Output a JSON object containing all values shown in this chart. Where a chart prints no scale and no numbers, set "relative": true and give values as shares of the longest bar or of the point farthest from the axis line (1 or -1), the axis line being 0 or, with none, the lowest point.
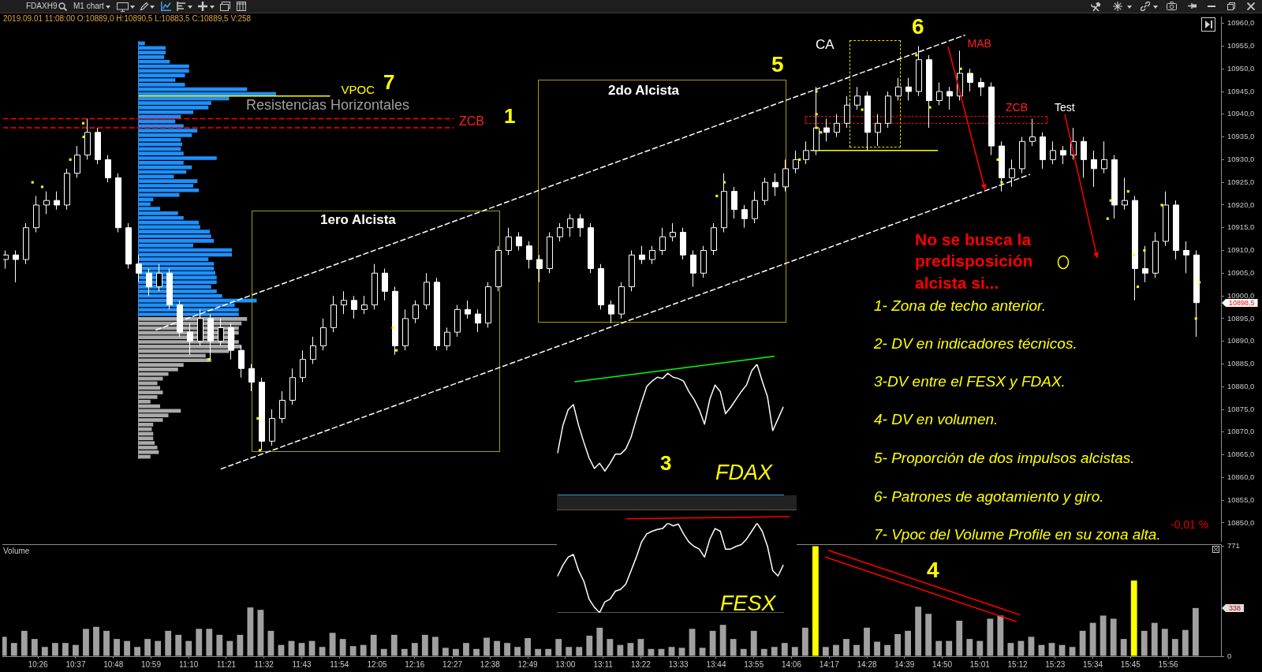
{
  "chart_data": [
    {
      "type": "candlestick",
      "title": "FDAXH9",
      "subtitle": "M1 chart",
      "color": "#ffffff",
      "x": [
        10.2667,
        10.3167,
        10.3667,
        10.4167,
        10.4667,
        10.5167,
        10.5667,
        10.6167,
        10.6667,
        10.7167,
        10.7667,
        10.8167,
        10.8667,
        10.9167,
        10.9667,
        11.0167,
        11.0667,
        11.1167,
        11.1667,
        11.2167,
        11.2667,
        11.3167,
        11.3667,
        11.4167,
        11.4667,
        11.5167,
        11.5667,
        11.6167,
        11.6667,
        11.7167,
        11.7667,
        11.8167,
        11.8667,
        11.9167,
        11.9667,
        12.0167,
        12.0667,
        12.1167,
        12.1667,
        12.2167,
        12.2667,
        12.3167,
        12.3667,
        12.4167,
        12.4667,
        12.5167,
        12.5667,
        12.6167,
        12.6667,
        12.7167,
        12.7667,
        12.8167,
        12.8667,
        12.9167,
        12.9667,
        13.0167,
        13.0667,
        13.1167,
        13.1667,
        13.2167,
        13.2667,
        13.3167,
        13.3667,
        13.4167,
        13.4667,
        13.5167,
        13.5667,
        13.6167,
        13.6667,
        13.7167,
        13.7667,
        13.8167,
        13.8667,
        13.9167,
        13.9667,
        14.0167,
        14.0667,
        14.1167,
        14.1667,
        14.2167,
        14.2667,
        14.3167,
        14.3667,
        14.4167,
        14.4667,
        14.5167,
        14.5667,
        14.6167,
        14.6667,
        14.7167,
        14.7667,
        14.8167,
        14.8667,
        14.9167,
        14.9667,
        15.0167,
        15.0667,
        15.1167,
        15.1667,
        15.2167,
        15.2667,
        15.3167,
        15.3667,
        15.4167,
        15.4667,
        15.5167,
        15.5667,
        15.6167,
        15.6667,
        15.7167,
        15.7667,
        15.8167,
        15.8667,
        15.9167,
        15.9667,
        16.0167,
        16.0667
      ],
      "ohlc": [
        [
          10908,
          10910,
          10906,
          10909
        ],
        [
          10909,
          10910,
          10903,
          10908
        ],
        [
          10908,
          10916,
          10907,
          10915
        ],
        [
          10915,
          10922,
          10914,
          10920
        ],
        [
          10920,
          10923,
          10918,
          10921
        ],
        [
          10921,
          10923,
          10919,
          10920
        ],
        [
          10920,
          10928,
          10919,
          10927
        ],
        [
          10927,
          10933,
          10926,
          10931
        ],
        [
          10931,
          10939,
          10930,
          10936
        ],
        [
          10936,
          10937,
          10929,
          10930
        ],
        [
          10930,
          10931,
          10925,
          10926
        ],
        [
          10926,
          10927,
          10914,
          10915
        ],
        [
          10915,
          10916,
          10906,
          10907
        ],
        [
          10907,
          10909,
          10903,
          10905
        ],
        [
          10905,
          10906,
          10900,
          10902
        ],
        [
          10902,
          10907,
          10901,
          10905
        ],
        [
          10905,
          10906,
          10897,
          10898
        ],
        [
          10898,
          10899,
          10891,
          10892
        ],
        [
          10892,
          10894,
          10887,
          10890
        ],
        [
          10890,
          10897,
          10889,
          10895
        ],
        [
          10895,
          10896,
          10886,
          10890
        ],
        [
          10890,
          10895,
          10889,
          10893
        ],
        [
          10893,
          10894,
          10886,
          10888
        ],
        [
          10888,
          10889,
          10882,
          10884
        ],
        [
          10884,
          10885,
          10879,
          10881
        ],
        [
          10881,
          10882,
          10866,
          10868
        ],
        [
          10868,
          10875,
          10867,
          10873
        ],
        [
          10873,
          10879,
          10872,
          10877
        ],
        [
          10877,
          10884,
          10876,
          10882
        ],
        [
          10882,
          10888,
          10881,
          10886
        ],
        [
          10886,
          10891,
          10885,
          10889
        ],
        [
          10889,
          10895,
          10888,
          10893
        ],
        [
          10893,
          10900,
          10892,
          10898
        ],
        [
          10898,
          10901,
          10896,
          10899
        ],
        [
          10899,
          10900,
          10895,
          10897
        ],
        [
          10897,
          10900,
          10896,
          10898
        ],
        [
          10898,
          10907,
          10897,
          10905
        ],
        [
          10905,
          10906,
          10899,
          10901
        ],
        [
          10901,
          10902,
          10887,
          10889
        ],
        [
          10889,
          10897,
          10888,
          10895
        ],
        [
          10895,
          10899,
          10894,
          10898
        ],
        [
          10898,
          10905,
          10897,
          10903
        ],
        [
          10903,
          10904,
          10888,
          10889
        ],
        [
          10889,
          10893,
          10888,
          10892
        ],
        [
          10892,
          10898,
          10891,
          10897
        ],
        [
          10897,
          10899,
          10895,
          10896
        ],
        [
          10896,
          10897,
          10892,
          10894
        ],
        [
          10894,
          10903,
          10893,
          10902
        ],
        [
          10902,
          10911,
          10901,
          10910
        ],
        [
          10910,
          10915,
          10909,
          10913
        ],
        [
          10913,
          10914,
          10910,
          10911
        ],
        [
          10911,
          10912,
          10906,
          10908
        ],
        [
          10908,
          10909,
          10903,
          10906
        ],
        [
          10906,
          10914,
          10905,
          10913
        ],
        [
          10913,
          10916,
          10912,
          10915
        ],
        [
          10915,
          10918,
          10913,
          10917
        ],
        [
          10917,
          10918,
          10913,
          10915
        ],
        [
          10915,
          10916,
          10905,
          10906
        ],
        [
          10906,
          10907,
          10897,
          10898
        ],
        [
          10898,
          10899,
          10894,
          10896
        ],
        [
          10896,
          10903,
          10895,
          10902
        ],
        [
          10902,
          10910,
          10901,
          10909
        ],
        [
          10909,
          10911,
          10907,
          10908
        ],
        [
          10908,
          10911,
          10907,
          10910
        ],
        [
          10910,
          10915,
          10909,
          10913
        ],
        [
          10913,
          10916,
          10912,
          10914
        ],
        [
          10914,
          10915,
          10908,
          10909
        ],
        [
          10909,
          10910,
          10902,
          10905
        ],
        [
          10905,
          10911,
          10904,
          10910
        ],
        [
          10910,
          10916,
          10909,
          10915
        ],
        [
          10915,
          10927,
          10914,
          10923
        ],
        [
          10923,
          10924,
          10917,
          10919
        ],
        [
          10919,
          10920,
          10915,
          10917
        ],
        [
          10917,
          10923,
          10916,
          10921
        ],
        [
          10921,
          10926,
          10920,
          10925
        ],
        [
          10925,
          10927,
          10922,
          10924
        ],
        [
          10924,
          10930,
          10923,
          10928
        ],
        [
          10928,
          10932,
          10927,
          10930
        ],
        [
          10930,
          10934,
          10929,
          10932
        ],
        [
          10932,
          10946,
          10931,
          10937
        ],
        [
          10937,
          10939,
          10934,
          10936
        ],
        [
          10936,
          10940,
          10935,
          10938
        ],
        [
          10938,
          10944,
          10937,
          10942
        ],
        [
          10942,
          10946,
          10941,
          10944
        ],
        [
          10944,
          10945,
          10932,
          10936
        ],
        [
          10936,
          10940,
          10933,
          10938
        ],
        [
          10938,
          10945,
          10937,
          10944
        ],
        [
          10944,
          10948,
          10943,
          10946
        ],
        [
          10946,
          10948,
          10943,
          10945
        ],
        [
          10945,
          10955,
          10944,
          10952
        ],
        [
          10952,
          10953,
          10937,
          10943
        ],
        [
          10943,
          10947,
          10942,
          10945
        ],
        [
          10945,
          10946,
          10941,
          10944
        ],
        [
          10944,
          10954,
          10943,
          10949
        ],
        [
          10949,
          10950,
          10945,
          10947
        ],
        [
          10947,
          10948,
          10944,
          10946
        ],
        [
          10946,
          10947,
          10931,
          10933
        ],
        [
          10933,
          10934,
          10923,
          10926
        ],
        [
          10926,
          10930,
          10924,
          10928
        ],
        [
          10928,
          10935,
          10927,
          10934
        ],
        [
          10934,
          10939,
          10933,
          10935
        ],
        [
          10935,
          10936,
          10928,
          10930
        ],
        [
          10930,
          10934,
          10929,
          10932
        ],
        [
          10932,
          10933,
          10929,
          10931
        ],
        [
          10931,
          10937,
          10930,
          10934
        ],
        [
          10934,
          10935,
          10926,
          10930
        ],
        [
          10930,
          10932,
          10924,
          10928
        ],
        [
          10928,
          10934,
          10927,
          10930
        ],
        [
          10930,
          10931,
          10917,
          10920
        ],
        [
          10920,
          10926,
          10919,
          10921
        ],
        [
          10921,
          10922,
          10899,
          10906
        ],
        [
          10906,
          10911,
          10903,
          10905
        ],
        [
          10905,
          10914,
          10904,
          10912
        ],
        [
          10912,
          10923,
          10911,
          10920
        ],
        [
          10920,
          10921,
          10908,
          10910
        ],
        [
          10910,
          10912,
          10905,
          10909
        ],
        [
          10909,
          10910,
          10891,
          10898.5
        ]
      ],
      "series": [
        {
          "type": "line",
          "color": "#ffffff",
          "line_style": "dashed",
          "x": [
            11.005,
            14.942
          ],
          "values": [
            10892.5,
            10957.4
          ]
        },
        {
          "type": "line",
          "color": "#ffffff",
          "line_style": "dashed",
          "x": [
            11.322,
            15.258
          ],
          "values": [
            10861.9,
            10926.7
          ]
        },
        {
          "type": "line",
          "color": "#ff0000",
          "line_style": "dashed",
          "x": [
            10.26,
            12.452
          ],
          "values": [
            10939,
            10939
          ]
        },
        {
          "type": "line",
          "color": "#ff0000",
          "line_style": "dashed",
          "x": [
            10.26,
            12.452
          ],
          "values": [
            10937,
            10937
          ]
        },
        {
          "type": "line",
          "color": "#ffff00",
          "x": [
            10.922,
            11.85
          ],
          "values": [
            10944,
            10944
          ]
        },
        {
          "type": "line",
          "color": "#ffff00",
          "x": [
            14.193,
            14.81
          ],
          "values": [
            10932,
            10932
          ]
        },
        {
          "type": "line",
          "color": "#00ff00",
          "x": [
            13.044,
            14.014
          ],
          "values": [
            10881.1,
            10886.7
          ]
        },
        {
          "type": "line",
          "color": "#ff0000",
          "x": [
            13.296,
            14.087
          ],
          "values": [
            10850.9,
            10851.4
          ]
        },
        {
          "type": "scatter",
          "color": "#ffff00",
          "marker": "square",
          "x": [
            10.403,
            10.45,
            10.587,
            10.65,
            10.652,
            11.26,
            11.5,
            11.51,
            12.158,
            12.175,
            13.735,
            13.772,
            14.138,
            14.22,
            14.22,
            14.22,
            14.242,
            14.443,
            14.707,
            14.773,
            14.923,
            15.103,
            15.122,
            15.638,
            15.653,
            15.738,
            15.767,
            15.785,
            15.817,
            15.902,
            16.068,
            16.085
          ],
          "values": [
            10925,
            10924,
            10930,
            10938,
            10935,
            10886,
            10873,
            10866,
            10893,
            10888,
            10922,
            10925,
            10930,
            10945,
            10940,
            10937,
            10936,
            10941,
            10953,
            10941.5,
            10950,
            10930,
            10925,
            10917,
            10921,
            10923,
            10909,
            10902,
            10910,
            10920,
            10895,
            10903
          ]
        }
      ],
      "xlim": [
        10.26,
        16.19
      ],
      "ylim": [
        10846,
        10961.5
      ],
      "yticks": [
        {
          "value": 10850,
          "label": "10850,0"
        },
        {
          "value": 10855,
          "label": "10855,0"
        },
        {
          "value": 10860,
          "label": "10860,0"
        },
        {
          "value": 10865,
          "label": "10865,0"
        },
        {
          "value": 10870,
          "label": "10870,0"
        },
        {
          "value": 10875,
          "label": "10875,0"
        },
        {
          "value": 10880,
          "label": "10880,0"
        },
        {
          "value": 10885,
          "label": "10885,0"
        },
        {
          "value": 10890,
          "label": "10890,0"
        },
        {
          "value": 10895,
          "label": "10895,0"
        },
        {
          "value": 10900,
          "label": "10900,0"
        },
        {
          "value": 10905,
          "label": "10905,0"
        },
        {
          "value": 10910,
          "label": "10910,0"
        },
        {
          "value": 10915,
          "label": "10915,0"
        },
        {
          "value": 10920,
          "label": "10920,0"
        },
        {
          "value": 10925,
          "label": "10925,0"
        },
        {
          "value": 10930,
          "label": "10930,0"
        },
        {
          "value": 10935,
          "label": "10935,0"
        },
        {
          "value": 10940,
          "label": "10940,0"
        },
        {
          "value": 10945,
          "label": "10945,0"
        },
        {
          "value": 10950,
          "label": "10950,0"
        },
        {
          "value": 10955,
          "label": "10955,0"
        },
        {
          "value": 10960,
          "label": "10960,0"
        }
      ],
      "tick_labels": "y",
      "annotations": [
        "2019.09.01 11:08:00 O:10889,0 H:10890,5 L:10883,5 C:10889,5 V:258",
        "VPOC",
        "7",
        "Resistencias Horizontales",
        "ZCB",
        "1",
        "1ero Alcista",
        "2do Alcista",
        "5",
        "CA",
        "6",
        "MAB",
        "ZCB",
        "Test",
        "No se busca la predisposición alcista si...",
        "1- Zona de techo anterior.",
        "2- DV en indicadores técnicos.",
        "3-DV entre el FESX y FDAX.",
        "4- DV en volumen.",
        "5- Proporción de dos impulsos alcistas.",
        "6- Patrones de agotamiento y giro.",
        "7- Vpoc del Volume Profile en su zona alta.",
        "-0,01 %",
        "10898,5"
      ]
    },
    {
      "type": "bar",
      "orientation": "horizontal",
      "relative": true,
      "categories": [
        null,
        null,
        null,
        null,
        null,
        null,
        null,
        null,
        null,
        null,
        null,
        null,
        null,
        null,
        null,
        null,
        null,
        null,
        null,
        null,
        null,
        null,
        null,
        null,
        null,
        null,
        null,
        null,
        null,
        null,
        null,
        null,
        null,
        null,
        null,
        null,
        null,
        null,
        null,
        null,
        null,
        null,
        null,
        null,
        null,
        null,
        null,
        null,
        null,
        null,
        null,
        null,
        null,
        null,
        null,
        null,
        null,
        null,
        null,
        null,
        null,
        null,
        null,
        null,
        null,
        null,
        null,
        null,
        null,
        null,
        null,
        null,
        null,
        null,
        null,
        null,
        null,
        null,
        null,
        null,
        null,
        null,
        null,
        null,
        null,
        null,
        null,
        null,
        null,
        null,
        null
      ],
      "values": [
        0.05,
        0.2,
        0.2,
        0.19,
        0.23,
        0.37,
        0.37,
        0.34,
        0.27,
        0.34,
        0.79,
        1,
        0.66,
        0.53,
        0.51,
        0.4,
        0.31,
        0.27,
        0.33,
        0.43,
        0.39,
        0.31,
        0.32,
        0.31,
        0.33,
        0.57,
        0.33,
        0.39,
        0.35,
        0.26,
        0.43,
        0.4,
        0.44,
        0.3,
        0.11,
        0.09,
        0.16,
        0.29,
        0.33,
        0.44,
        0.45,
        0.52,
        0.53,
        0.55,
        0.4,
        0.68,
        0.68,
        0.51,
        0.55,
        0.55,
        0.56,
        0.57,
        0.57,
        0.53,
        0.57,
        0.61,
        0.86,
        0.7,
        0.73,
        0.73,
        0.79,
        0.75,
        0.73,
        0.73,
        0.7,
        0.73,
        0.75,
        0.66,
        0.49,
        0.53,
        0.33,
        0.29,
        0.22,
        0.18,
        0.14,
        0.16,
        0.18,
        0.14,
        0.09,
        0.16,
        0.31,
        0.22,
        0.18,
        0.11,
        0.1,
        0.11,
        0.11,
        0.12,
        0.14,
        0.15,
        0.09
      ],
      "colors": [
        "#1e90ff",
        "#1e90ff",
        "#1e90ff",
        "#1e90ff",
        "#1e90ff",
        "#1e90ff",
        "#1e90ff",
        "#1e90ff",
        "#1e90ff",
        "#1e90ff",
        "#1e90ff",
        "#1e90ff",
        "#1e90ff",
        "#1e90ff",
        "#1e90ff",
        "#1e90ff",
        "#1e90ff",
        "#1e90ff",
        "#1e90ff",
        "#1e90ff",
        "#1e90ff",
        "#1e90ff",
        "#1e90ff",
        "#1e90ff",
        "#1e90ff",
        "#1e90ff",
        "#1e90ff",
        "#1e90ff",
        "#1e90ff",
        "#1e90ff",
        "#1e90ff",
        "#1e90ff",
        "#1e90ff",
        "#1e90ff",
        "#1e90ff",
        "#1e90ff",
        "#1e90ff",
        "#1e90ff",
        "#1e90ff",
        "#1e90ff",
        "#1e90ff",
        "#1e90ff",
        "#1e90ff",
        "#1e90ff",
        "#1e90ff",
        "#1e90ff",
        "#1e90ff",
        "#1e90ff",
        "#1e90ff",
        "#1e90ff",
        "#1e90ff",
        "#1e90ff",
        "#1e90ff",
        "#1e90ff",
        "#1e90ff",
        "#1e90ff",
        "#1e90ff",
        "#1e90ff",
        "#1e90ff",
        "#1e90ff",
        "#aaaaaa",
        "#aaaaaa",
        "#aaaaaa",
        "#aaaaaa",
        "#aaaaaa",
        "#aaaaaa",
        "#aaaaaa",
        "#aaaaaa",
        "#aaaaaa",
        "#aaaaaa",
        "#aaaaaa",
        "#aaaaaa",
        "#aaaaaa",
        "#aaaaaa",
        "#aaaaaa",
        "#aaaaaa",
        "#aaaaaa",
        "#aaaaaa",
        "#aaaaaa",
        "#aaaaaa",
        "#aaaaaa",
        "#aaaaaa",
        "#aaaaaa",
        "#aaaaaa",
        "#aaaaaa",
        "#aaaaaa",
        "#aaaaaa",
        "#aaaaaa",
        "#aaaaaa",
        "#aaaaaa",
        "#aaaaaa"
      ]
    },
    {
      "type": "line",
      "title": "3",
      "relative": true,
      "categories": [
        null,
        null,
        null,
        null,
        null,
        null,
        null,
        null,
        null,
        null,
        null,
        null,
        null,
        null,
        null,
        null,
        null,
        null,
        null,
        null,
        null,
        null,
        null,
        null,
        null,
        null,
        null,
        null,
        null,
        null,
        null,
        null,
        null,
        null,
        null,
        null,
        null,
        null,
        null,
        null,
        null,
        null,
        null,
        null
      ],
      "series": [
        {
          "name": "FDAX",
          "color": "#ffffff",
          "values": [
            0.32,
            0.53,
            0.65,
            0.69,
            0.53,
            0.4,
            0.28,
            0.2,
            0.24,
            0.18,
            0.24,
            0.31,
            0.31,
            0.35,
            0.44,
            0.58,
            0.71,
            0.83,
            0.87,
            0.9,
            0.89,
            0.93,
            0.9,
            0.89,
            0.87,
            0.79,
            0.73,
            0.65,
            0.54,
            0.73,
            0.84,
            0.79,
            0.62,
            0.67,
            0.73,
            0.79,
            0.84,
            0.95,
            1,
            0.87,
            0.75,
            0.49,
            0.58,
            0.67
          ]
        }
      ]
    },
    {
      "type": "line",
      "relative": true,
      "categories": [
        null,
        null,
        null,
        null,
        null,
        null,
        null,
        null,
        null,
        null,
        null,
        null,
        null,
        null,
        null,
        null,
        null,
        null,
        null,
        null,
        null,
        null,
        null,
        null,
        null,
        null,
        null,
        null,
        null,
        null,
        null,
        null,
        null,
        null,
        null,
        null,
        null,
        null,
        null,
        null,
        null,
        null,
        null,
        null
      ],
      "series": [
        {
          "name": "FESX",
          "color": "#ffffff",
          "values": [
            0.41,
            0.53,
            0.62,
            0.65,
            0.47,
            0.35,
            0.15,
            0.06,
            0,
            0.12,
            0.15,
            0.24,
            0.26,
            0.32,
            0.47,
            0.62,
            0.79,
            0.88,
            0.91,
            0.93,
            0.94,
            1,
            0.97,
            0.99,
            0.88,
            0.79,
            0.74,
            0.71,
            0.62,
            0.82,
            0.94,
            0.91,
            0.71,
            0.71,
            0.74,
            0.76,
            0.82,
            0.91,
            1,
            0.91,
            0.74,
            0.47,
            0.41,
            0.53
          ]
        }
      ]
    },
    {
      "type": "bar",
      "title": "Volume",
      "x": [
        10.2667,
        10.3167,
        10.3667,
        10.4167,
        10.4667,
        10.5167,
        10.5667,
        10.6167,
        10.6667,
        10.7167,
        10.7667,
        10.8167,
        10.8667,
        10.9167,
        10.9667,
        11.0167,
        11.0667,
        11.1167,
        11.1667,
        11.2167,
        11.2667,
        11.3167,
        11.3667,
        11.4167,
        11.4667,
        11.5167,
        11.5667,
        11.6167,
        11.6667,
        11.7167,
        11.7667,
        11.8167,
        11.8667,
        11.9167,
        11.9667,
        12.0167,
        12.0667,
        12.1167,
        12.1667,
        12.2167,
        12.2667,
        12.3167,
        12.3667,
        12.4167,
        12.4667,
        12.5167,
        12.5667,
        12.6167,
        12.6667,
        12.7167,
        12.7667,
        12.8167,
        12.8667,
        12.9167,
        12.9667,
        13.0167,
        13.0667,
        13.1167,
        13.1667,
        13.2167,
        13.2667,
        13.3167,
        13.3667,
        13.4167,
        13.4667,
        13.5167,
        13.5667,
        13.6167,
        13.6667,
        13.7167,
        13.7667,
        13.8167,
        13.8667,
        13.9167,
        13.9667,
        14.0167,
        14.0667,
        14.1167,
        14.1667,
        14.2167,
        14.2667,
        14.3167,
        14.3667,
        14.4167,
        14.4667,
        14.5167,
        14.5667,
        14.6167,
        14.6667,
        14.7167,
        14.7667,
        14.8167,
        14.8667,
        14.9167,
        14.9667,
        15.0167,
        15.0667,
        15.1167,
        15.1667,
        15.2167,
        15.2667,
        15.3167,
        15.3667,
        15.4167,
        15.4667,
        15.5167,
        15.5667,
        15.6167,
        15.6667,
        15.7167,
        15.7667,
        15.8167,
        15.8667,
        15.9167,
        15.9667,
        16.0167,
        16.0667
      ],
      "values": [
        136,
        93,
        178,
        121,
        65,
        93,
        93,
        79,
        192,
        206,
        178,
        121,
        107,
        65,
        121,
        107,
        178,
        150,
        107,
        192,
        192,
        150,
        107,
        150,
        342,
        325,
        178,
        79,
        107,
        93,
        107,
        65,
        164,
        121,
        71,
        79,
        150,
        51,
        150,
        51,
        93,
        150,
        136,
        59,
        51,
        93,
        51,
        130,
        107,
        93,
        65,
        127,
        51,
        51,
        121,
        65,
        65,
        144,
        200,
        121,
        79,
        93,
        121,
        51,
        51,
        65,
        59,
        192,
        59,
        178,
        220,
        121,
        51,
        178,
        51,
        65,
        93,
        65,
        200,
        771,
        65,
        79,
        121,
        79,
        200,
        102,
        79,
        155,
        178,
        347,
        297,
        107,
        107,
        249,
        121,
        107,
        263,
        285,
        93,
        107,
        136,
        79,
        93,
        79,
        65,
        178,
        234,
        285,
        263,
        121,
        531,
        178,
        234,
        192,
        121,
        184,
        338
      ],
      "colors": [
        "#a0a0a0",
        "#a0a0a0",
        "#a0a0a0",
        "#a0a0a0",
        "#a0a0a0",
        "#a0a0a0",
        "#a0a0a0",
        "#a0a0a0",
        "#a0a0a0",
        "#a0a0a0",
        "#a0a0a0",
        "#a0a0a0",
        "#a0a0a0",
        "#a0a0a0",
        "#a0a0a0",
        "#a0a0a0",
        "#a0a0a0",
        "#a0a0a0",
        "#a0a0a0",
        "#a0a0a0",
        "#a0a0a0",
        "#a0a0a0",
        "#a0a0a0",
        "#a0a0a0",
        "#a0a0a0",
        "#a0a0a0",
        "#a0a0a0",
        "#a0a0a0",
        "#a0a0a0",
        "#a0a0a0",
        "#a0a0a0",
        "#a0a0a0",
        "#a0a0a0",
        "#a0a0a0",
        "#a0a0a0",
        "#a0a0a0",
        "#a0a0a0",
        "#a0a0a0",
        "#a0a0a0",
        "#a0a0a0",
        "#a0a0a0",
        "#a0a0a0",
        "#a0a0a0",
        "#a0a0a0",
        "#a0a0a0",
        "#a0a0a0",
        "#a0a0a0",
        "#a0a0a0",
        "#a0a0a0",
        "#a0a0a0",
        "#a0a0a0",
        "#a0a0a0",
        "#a0a0a0",
        "#a0a0a0",
        "#a0a0a0",
        "#a0a0a0",
        "#a0a0a0",
        "#a0a0a0",
        "#a0a0a0",
        "#a0a0a0",
        "#a0a0a0",
        "#a0a0a0",
        "#a0a0a0",
        "#a0a0a0",
        "#a0a0a0",
        "#a0a0a0",
        "#a0a0a0",
        "#a0a0a0",
        "#a0a0a0",
        "#a0a0a0",
        "#a0a0a0",
        "#a0a0a0",
        "#a0a0a0",
        "#a0a0a0",
        "#a0a0a0",
        "#a0a0a0",
        "#a0a0a0",
        "#a0a0a0",
        "#a0a0a0",
        "#ffff00",
        "#a0a0a0",
        "#a0a0a0",
        "#a0a0a0",
        "#a0a0a0",
        "#a0a0a0",
        "#a0a0a0",
        "#a0a0a0",
        "#a0a0a0",
        "#a0a0a0",
        "#a0a0a0",
        "#a0a0a0",
        "#a0a0a0",
        "#a0a0a0",
        "#a0a0a0",
        "#a0a0a0",
        "#a0a0a0",
        "#a0a0a0",
        "#a0a0a0",
        "#a0a0a0",
        "#a0a0a0",
        "#a0a0a0",
        "#a0a0a0",
        "#a0a0a0",
        "#a0a0a0",
        "#a0a0a0",
        "#a0a0a0",
        "#a0a0a0",
        "#a0a0a0",
        "#a0a0a0",
        "#a0a0a0",
        "#ffff00",
        "#a0a0a0",
        "#a0a0a0",
        "#a0a0a0",
        "#a0a0a0",
        "#a0a0a0",
        "#a0a0a0"
      ],
      "series": [
        {
          "type": "line",
          "color": "#ff0000",
          "x": [
            14.28,
            15.21
          ],
          "values": [
            742,
            291
          ]
        },
        {
          "type": "line",
          "color": "#ff0000",
          "x": [
            14.265,
            15.193
          ],
          "values": [
            695,
            243
          ]
        }
      ],
      "xlim": [
        10.26,
        16.19
      ],
      "xticks": [
        {
          "value": 10.4333,
          "label": "10:26"
        },
        {
          "value": 10.6167,
          "label": "10:37"
        },
        {
          "value": 10.8,
          "label": "10:48"
        },
        {
          "value": 10.9833,
          "label": "10:59"
        },
        {
          "value": 11.1667,
          "label": "11:10"
        },
        {
          "value": 11.35,
          "label": "11:21"
        },
        {
          "value": 11.5333,
          "label": "11:32"
        },
        {
          "value": 11.7167,
          "label": "11:43"
        },
        {
          "value": 11.9,
          "label": "11:54"
        },
        {
          "value": 12.0833,
          "label": "12:05"
        },
        {
          "value": 12.2667,
          "label": "12:16"
        },
        {
          "value": 12.45,
          "label": "12:27"
        },
        {
          "value": 12.6333,
          "label": "12:38"
        },
        {
          "value": 12.8167,
          "label": "12:49"
        },
        {
          "value": 13,
          "label": "13:00"
        },
        {
          "value": 13.1833,
          "label": "13:11"
        },
        {
          "value": 13.3667,
          "label": "13:22"
        },
        {
          "value": 13.55,
          "label": "13:33"
        },
        {
          "value": 13.7333,
          "label": "13:44"
        },
        {
          "value": 13.9167,
          "label": "13:55"
        },
        {
          "value": 14.1,
          "label": "14:06"
        },
        {
          "value": 14.2833,
          "label": "14:17"
        },
        {
          "value": 14.4667,
          "label": "14:28"
        },
        {
          "value": 14.65,
          "label": "14:39"
        },
        {
          "value": 14.8333,
          "label": "14:50"
        },
        {
          "value": 15.0167,
          "label": "15:01"
        },
        {
          "value": 15.2,
          "label": "15:12"
        },
        {
          "value": 15.3833,
          "label": "15:23"
        },
        {
          "value": 15.5667,
          "label": "15:34"
        },
        {
          "value": 15.75,
          "label": "15:45"
        },
        {
          "value": 15.9333,
          "label": "15:56"
        }
      ],
      "ylim": [
        0,
        785
      ],
      "yticks": [
        0,
        771
      ],
      "annotations": [
        "4",
        "338"
      ]
    }
  ]
}
